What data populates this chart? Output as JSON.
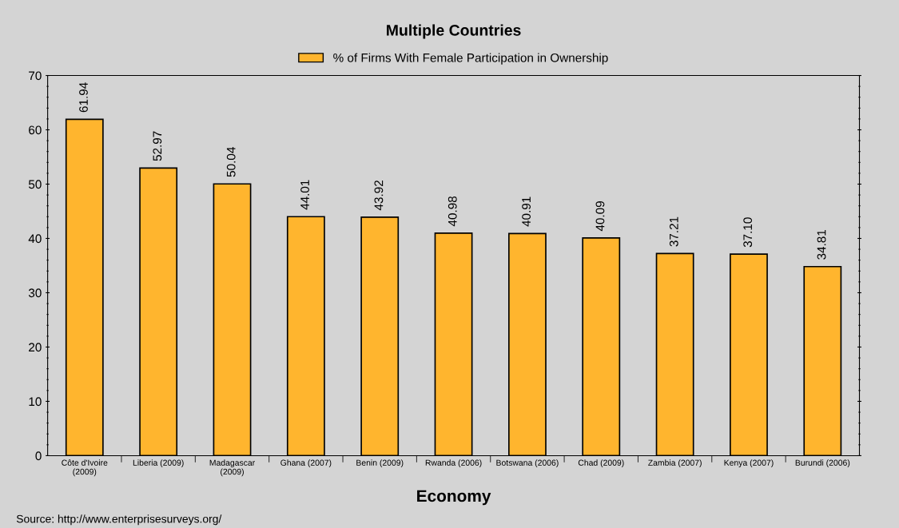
{
  "chart_data": {
    "type": "bar",
    "title": "Multiple Countries",
    "xlabel": "Economy",
    "categories": [
      "Côte d'Ivoire\n(2009)",
      "Liberia (2009)",
      "Madagascar\n(2009)",
      "Ghana (2007)",
      "Benin (2009)",
      "Rwanda (2006)",
      "Botswana (2006)",
      "Chad (2009)",
      "Zambia (2007)",
      "Kenya (2007)",
      "Burundi (2006)"
    ],
    "series": [
      {
        "name": "% of Firms With Female Participation in Ownership",
        "color": "#ffb52e",
        "values": [
          61.94,
          52.97,
          50.04,
          44.01,
          43.92,
          40.98,
          40.91,
          40.09,
          37.21,
          37.1,
          34.81
        ],
        "value_labels": [
          "61.94",
          "52.97",
          "50.04",
          "44.01",
          "43.92",
          "40.98",
          "40.91",
          "40.09",
          "37.21",
          "37.10",
          "34.81"
        ]
      }
    ],
    "ylim": [
      0,
      70
    ],
    "yticks": [
      0,
      10,
      20,
      30,
      40,
      50,
      60,
      70
    ],
    "legend": "top",
    "grid": false,
    "annotations": [
      "Source: http://www.enterprisesurveys.org/"
    ]
  }
}
